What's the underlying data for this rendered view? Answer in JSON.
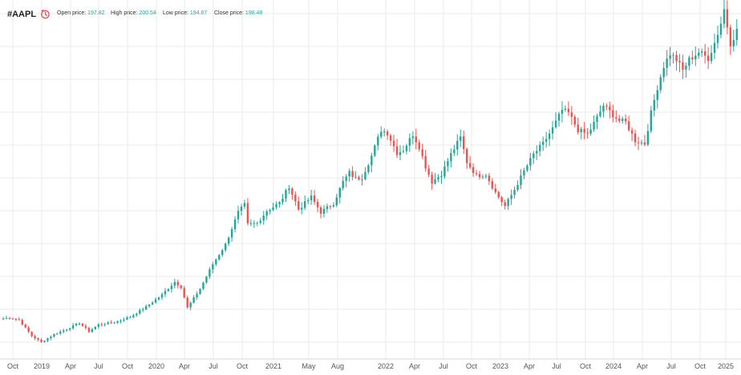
{
  "header": {
    "symbol": "#AAPL",
    "open_label": "Open price:",
    "open_value": "197.82",
    "high_label": "High price:",
    "high_value": "200.54",
    "low_label": "Low price:",
    "low_value": "194.67",
    "close_label": "Close price:",
    "close_value": "198.48"
  },
  "colors": {
    "up": "#26a69a",
    "down": "#ef5350",
    "grid": "#ebebeb",
    "clock_icon": "#e05050"
  },
  "chart_data": {
    "type": "candlestick",
    "title": "",
    "xlabel": "",
    "ylabel": "",
    "grid": true,
    "x_tick_labels": [
      "Oct",
      "2019",
      "Apr",
      "Jul",
      "Oct",
      "2020",
      "Apr",
      "Jul",
      "Oct",
      "2021",
      "May",
      "Aug",
      "2022",
      "Apr",
      "Jul",
      "Oct",
      "2023",
      "Apr",
      "Jul",
      "Oct",
      "2024",
      "Apr",
      "Jul",
      "Oct",
      "2025"
    ],
    "trend_close_anchors": [
      {
        "t": 0,
        "v": 55.5
      },
      {
        "t": 2.5,
        "v": 55.8
      },
      {
        "t": 5,
        "v": 54.5
      },
      {
        "t": 9,
        "v": 44.0
      },
      {
        "t": 12,
        "v": 40.0
      },
      {
        "t": 16,
        "v": 45.0
      },
      {
        "t": 20,
        "v": 48.5
      },
      {
        "t": 24,
        "v": 52.5
      },
      {
        "t": 27,
        "v": 47.0
      },
      {
        "t": 30,
        "v": 51.5
      },
      {
        "t": 35,
        "v": 53.0
      },
      {
        "t": 40,
        "v": 56.5
      },
      {
        "t": 45,
        "v": 63.0
      },
      {
        "t": 50,
        "v": 71.0
      },
      {
        "t": 54,
        "v": 79.5
      },
      {
        "t": 56,
        "v": 76.0
      },
      {
        "t": 58,
        "v": 62.5
      },
      {
        "t": 62,
        "v": 75.0
      },
      {
        "t": 66,
        "v": 91.0
      },
      {
        "t": 70,
        "v": 104.0
      },
      {
        "t": 74,
        "v": 125.0
      },
      {
        "t": 76,
        "v": 130.0
      },
      {
        "t": 77,
        "v": 117.0
      },
      {
        "t": 80,
        "v": 118.0
      },
      {
        "t": 83,
        "v": 126.0
      },
      {
        "t": 87,
        "v": 131.0
      },
      {
        "t": 90,
        "v": 142.0
      },
      {
        "t": 93,
        "v": 127.0
      },
      {
        "t": 97,
        "v": 135.0
      },
      {
        "t": 100,
        "v": 125.0
      },
      {
        "t": 104,
        "v": 131.0
      },
      {
        "t": 107,
        "v": 145.0
      },
      {
        "t": 109,
        "v": 151.0
      },
      {
        "t": 111,
        "v": 147.0
      },
      {
        "t": 113,
        "v": 148.0
      },
      {
        "t": 116,
        "v": 162.0
      },
      {
        "t": 119,
        "v": 179.0
      },
      {
        "t": 121,
        "v": 177.0
      },
      {
        "t": 124,
        "v": 164.0
      },
      {
        "t": 126,
        "v": 166.0
      },
      {
        "t": 129,
        "v": 176.0
      },
      {
        "t": 131,
        "v": 168.0
      },
      {
        "t": 133,
        "v": 155.0
      },
      {
        "t": 135,
        "v": 145.0
      },
      {
        "t": 138,
        "v": 150.0
      },
      {
        "t": 141,
        "v": 163.0
      },
      {
        "t": 144,
        "v": 174.0
      },
      {
        "t": 146,
        "v": 158.0
      },
      {
        "t": 149,
        "v": 149.0
      },
      {
        "t": 152,
        "v": 150.0
      },
      {
        "t": 155,
        "v": 138.0
      },
      {
        "t": 158,
        "v": 129.0
      },
      {
        "t": 161,
        "v": 140.0
      },
      {
        "t": 164,
        "v": 152.0
      },
      {
        "t": 167,
        "v": 163.0
      },
      {
        "t": 170,
        "v": 170.0
      },
      {
        "t": 173,
        "v": 180.0
      },
      {
        "t": 176,
        "v": 192.0
      },
      {
        "t": 178,
        "v": 190.0
      },
      {
        "t": 181,
        "v": 179.0
      },
      {
        "t": 184,
        "v": 176.0
      },
      {
        "t": 187,
        "v": 187.0
      },
      {
        "t": 189,
        "v": 195.0
      },
      {
        "t": 191,
        "v": 191.0
      },
      {
        "t": 194,
        "v": 185.0
      },
      {
        "t": 196,
        "v": 184.0
      },
      {
        "t": 199,
        "v": 172.0
      },
      {
        "t": 202,
        "v": 170.0
      },
      {
        "t": 204,
        "v": 190.0
      },
      {
        "t": 206,
        "v": 207.0
      },
      {
        "t": 208,
        "v": 221.0
      },
      {
        "t": 210,
        "v": 229.0
      },
      {
        "t": 212,
        "v": 225.0
      },
      {
        "t": 214,
        "v": 218.0
      },
      {
        "t": 216,
        "v": 225.0
      },
      {
        "t": 219,
        "v": 230.0
      },
      {
        "t": 222,
        "v": 226.0
      },
      {
        "t": 224,
        "v": 236.0
      },
      {
        "t": 226,
        "v": 249.0
      },
      {
        "t": 227,
        "v": 258.0
      },
      {
        "t": 229,
        "v": 236.0
      },
      {
        "t": 231,
        "v": 244.0
      }
    ]
  }
}
